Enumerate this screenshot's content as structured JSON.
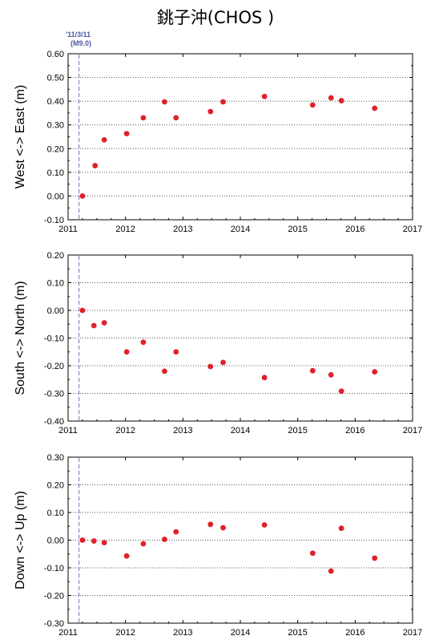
{
  "title": "銚子沖(CHOS )",
  "earthquake": {
    "date_label": "'11/3/11",
    "magnitude_label": "(M9.0)",
    "year": 2011.19
  },
  "colors": {
    "marker": "#e0202a",
    "grid": "#555555",
    "event_line": "#8888cc"
  },
  "chart_data": [
    {
      "type": "scatter",
      "ylabel": "West <-> East (m)",
      "xlim": [
        2011,
        2017
      ],
      "ylim": [
        -0.1,
        0.6
      ],
      "x_ticks": [
        "2011",
        "2012",
        "2013",
        "2014",
        "2015",
        "2016",
        "2017"
      ],
      "y_ticks": [
        "0.60",
        "0.50",
        "0.40",
        "0.30",
        "0.20",
        "0.10",
        "0.00",
        "-0.10"
      ],
      "x": [
        2011.25,
        2011.47,
        2011.63,
        2012.02,
        2012.31,
        2012.68,
        2012.88,
        2013.48,
        2013.7,
        2014.42,
        2015.26,
        2015.58,
        2015.76,
        2016.34
      ],
      "y": [
        0.0,
        0.128,
        0.237,
        0.263,
        0.33,
        0.397,
        0.33,
        0.356,
        0.397,
        0.42,
        0.384,
        0.414,
        0.402,
        0.37
      ]
    },
    {
      "type": "scatter",
      "ylabel": "South <-> North (m)",
      "xlim": [
        2011,
        2017
      ],
      "ylim": [
        -0.4,
        0.2
      ],
      "x_ticks": [
        "2011",
        "2012",
        "2013",
        "2014",
        "2015",
        "2016",
        "2017"
      ],
      "y_ticks": [
        "0.20",
        "0.10",
        "0.00",
        "-0.10",
        "-0.20",
        "-0.30",
        "-0.40"
      ],
      "x": [
        2011.25,
        2011.45,
        2011.63,
        2012.02,
        2012.31,
        2012.68,
        2012.88,
        2013.48,
        2013.7,
        2014.42,
        2015.26,
        2015.58,
        2015.76,
        2016.34
      ],
      "y": [
        0.0,
        -0.055,
        -0.045,
        -0.15,
        -0.115,
        -0.22,
        -0.15,
        -0.203,
        -0.188,
        -0.243,
        -0.218,
        -0.233,
        -0.292,
        -0.222
      ]
    },
    {
      "type": "scatter",
      "ylabel": "Down <-> Up (m)",
      "xlim": [
        2011,
        2017
      ],
      "ylim": [
        -0.3,
        0.3
      ],
      "x_ticks": [
        "2011",
        "2012",
        "2013",
        "2014",
        "2015",
        "2016",
        "2017"
      ],
      "y_ticks": [
        "0.30",
        "0.20",
        "0.10",
        "0.00",
        "-0.10",
        "-0.20",
        "-0.30"
      ],
      "x": [
        2011.25,
        2011.45,
        2011.63,
        2012.02,
        2012.31,
        2012.68,
        2012.88,
        2013.48,
        2013.7,
        2014.42,
        2015.26,
        2015.58,
        2015.76,
        2016.34
      ],
      "y": [
        0.0,
        -0.003,
        -0.009,
        -0.057,
        -0.013,
        0.003,
        0.03,
        0.057,
        0.045,
        0.055,
        -0.047,
        -0.112,
        0.043,
        -0.065
      ]
    }
  ]
}
